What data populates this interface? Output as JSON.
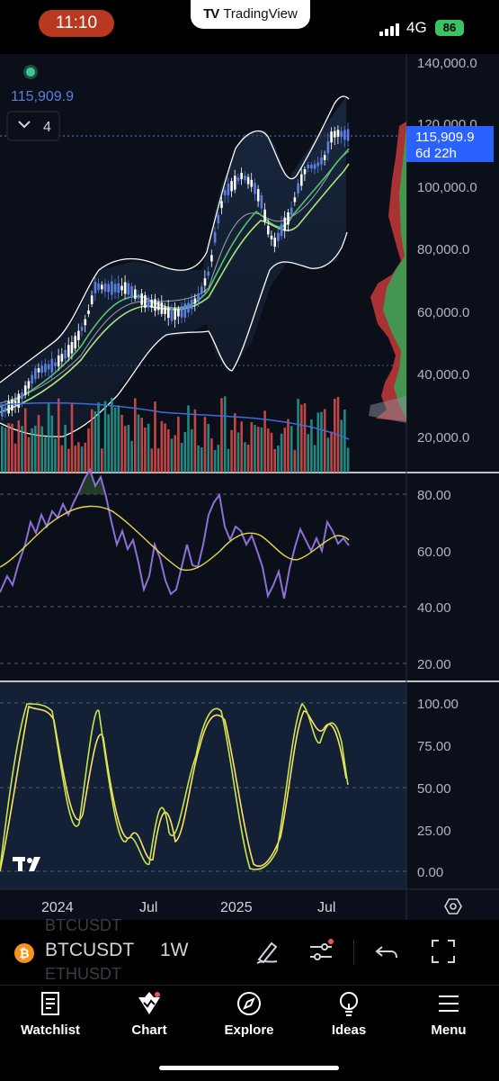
{
  "status_bar": {
    "time": "11:10",
    "app_pill": "TradingView",
    "network": "4G",
    "battery": "86"
  },
  "chart": {
    "top_value": "115,909.9",
    "indicator_count": "4",
    "current_price": "115,909.9",
    "countdown": "6d 22h",
    "price_axis": [
      "140,000.0",
      "120,000.0",
      "100,000.0",
      "80,000.0",
      "60,000.0",
      "40,000.0",
      "20,000.0"
    ],
    "rsi_axis": [
      "80.00",
      "60.00",
      "40.00",
      "20.00"
    ],
    "stoch_axis": [
      "100.00",
      "75.00",
      "50.00",
      "25.00",
      "0.00"
    ],
    "time_axis": [
      "2024",
      "Jul",
      "2025",
      "Jul"
    ],
    "colors": {
      "up": "#5b7fe0",
      "down": "#ffffff",
      "vol_up": "#26a69a",
      "vol_down": "#ef5350",
      "rsi": "#8e6fd8",
      "rsi_ma": "#e5d84a",
      "stoch_k": "#c6e84a",
      "stoch_d": "#ffe066",
      "price_label": "#2962ff"
    }
  },
  "toolbar": {
    "symbol": "BTCUSDT",
    "ghost_above": "BTCUSDT",
    "ghost_below": "ETHUSDT",
    "interval": "1W"
  },
  "nav": {
    "watchlist": "Watchlist",
    "chart": "Chart",
    "explore": "Explore",
    "ideas": "Ideas",
    "menu": "Menu"
  }
}
